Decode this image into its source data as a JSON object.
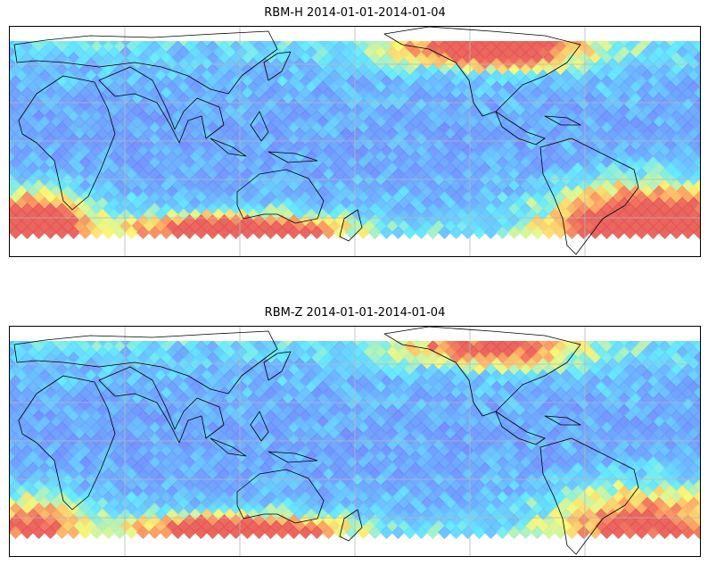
{
  "maps": [
    {
      "title": "RBM-H 2014-01-01-2014-01-04",
      "variable": "RBM-H",
      "date_range": "2014-01-01-2014-01-04",
      "colormap": "jet (semi-transparent)",
      "colors": {
        "low": "#6b6bff",
        "mid": "#5be8ff",
        "high": "#e85a4f"
      },
      "hotspots": [
        {
          "region": "north-atlantic",
          "level": 0.85
        },
        {
          "region": "south-atlantic-off-argentina",
          "level": 0.95
        },
        {
          "region": "southern-ocean-south-of-australia",
          "level": 0.9
        },
        {
          "region": "south-atlantic-off-southern-africa",
          "level": 0.95
        }
      ]
    },
    {
      "title": "RBM-Z 2014-01-01-2014-01-04",
      "variable": "RBM-Z",
      "date_range": "2014-01-01-2014-01-04",
      "colormap": "jet (semi-transparent)",
      "colors": {
        "low": "#6b6bff",
        "mid": "#5be8ff",
        "high": "#e85a4f"
      },
      "hotspots": [
        {
          "region": "north-atlantic",
          "level": 0.6
        },
        {
          "region": "south-atlantic-off-argentina",
          "level": 0.65
        },
        {
          "region": "southern-ocean-south-of-australia",
          "level": 0.85
        },
        {
          "region": "south-atlantic-off-southern-africa",
          "level": 0.6
        }
      ]
    }
  ],
  "gridlines": true,
  "coastlines": true
}
